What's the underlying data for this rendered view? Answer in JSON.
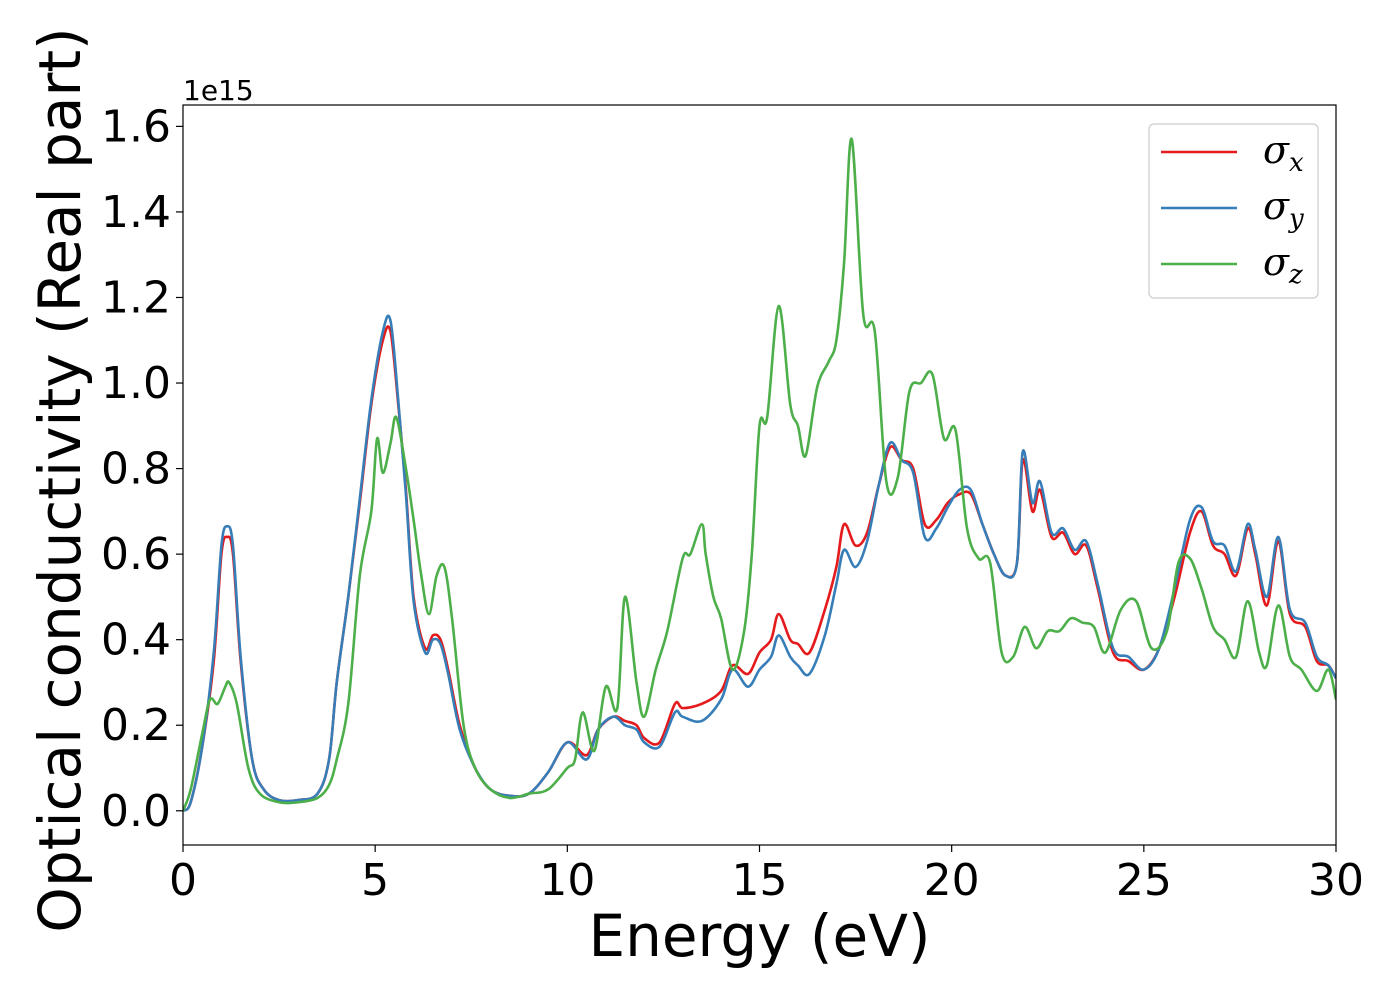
{
  "chart_data": {
    "type": "line",
    "xlabel": "Energy (eV)",
    "ylabel": "Optical conductivity (Real part)",
    "y_offset_label": "1e15",
    "xlim": [
      0,
      30
    ],
    "ylim": [
      -0.08,
      1.65
    ],
    "xticks": [
      0,
      5,
      10,
      15,
      20,
      25,
      30
    ],
    "yticks": [
      0.0,
      0.2,
      0.4,
      0.6,
      0.8,
      1.0,
      1.2,
      1.4,
      1.6
    ],
    "xtick_labels": [
      "0",
      "5",
      "10",
      "15",
      "20",
      "25",
      "30"
    ],
    "ytick_labels": [
      "0.0",
      "0.2",
      "0.4",
      "0.6",
      "0.8",
      "1.0",
      "1.2",
      "1.4",
      "1.6"
    ],
    "grid": false,
    "legend_position": "top-right",
    "legend": [
      {
        "symbol": "σ",
        "sub": "x",
        "color": "#e41a1c"
      },
      {
        "symbol": "σ",
        "sub": "y",
        "color": "#377eb8"
      },
      {
        "symbol": "σ",
        "sub": "z",
        "color": "#4daf4a"
      }
    ],
    "series": [
      {
        "name": "σx",
        "color": "#e41a1c",
        "x": [
          0,
          0.2,
          0.5,
          0.8,
          1.0,
          1.15,
          1.3,
          1.5,
          1.8,
          2.1,
          2.5,
          3.0,
          3.5,
          3.8,
          4.0,
          4.3,
          4.6,
          4.9,
          5.2,
          5.4,
          5.6,
          5.8,
          6.0,
          6.3,
          6.5,
          6.7,
          6.9,
          7.2,
          7.6,
          8.0,
          8.5,
          9.0,
          9.5,
          10.0,
          10.5,
          10.8,
          11.2,
          11.5,
          11.8,
          12.0,
          12.4,
          12.8,
          13.0,
          13.5,
          14.0,
          14.3,
          14.7,
          15.0,
          15.3,
          15.5,
          15.8,
          16.0,
          16.3,
          16.7,
          17.0,
          17.2,
          17.5,
          17.8,
          18.1,
          18.4,
          18.7,
          19.0,
          19.3,
          19.6,
          19.9,
          20.2,
          20.5,
          20.8,
          21.1,
          21.4,
          21.7,
          21.85,
          22.1,
          22.3,
          22.6,
          22.9,
          23.2,
          23.5,
          23.8,
          24.2,
          24.6,
          25.0,
          25.4,
          25.8,
          26.2,
          26.5,
          26.8,
          27.1,
          27.4,
          27.7,
          27.9,
          28.2,
          28.5,
          28.8,
          29.2,
          29.5,
          29.8,
          30.0
        ],
        "values": [
          0.0,
          0.02,
          0.15,
          0.35,
          0.6,
          0.64,
          0.6,
          0.35,
          0.12,
          0.05,
          0.025,
          0.025,
          0.04,
          0.12,
          0.3,
          0.5,
          0.72,
          0.95,
          1.1,
          1.12,
          0.95,
          0.75,
          0.5,
          0.38,
          0.41,
          0.4,
          0.33,
          0.2,
          0.1,
          0.05,
          0.035,
          0.04,
          0.09,
          0.16,
          0.13,
          0.19,
          0.22,
          0.21,
          0.2,
          0.17,
          0.16,
          0.25,
          0.24,
          0.25,
          0.28,
          0.34,
          0.32,
          0.37,
          0.4,
          0.46,
          0.4,
          0.39,
          0.37,
          0.47,
          0.57,
          0.67,
          0.62,
          0.65,
          0.76,
          0.85,
          0.82,
          0.8,
          0.67,
          0.68,
          0.72,
          0.74,
          0.74,
          0.67,
          0.6,
          0.55,
          0.58,
          0.82,
          0.7,
          0.75,
          0.64,
          0.65,
          0.6,
          0.62,
          0.52,
          0.37,
          0.35,
          0.33,
          0.38,
          0.5,
          0.65,
          0.7,
          0.62,
          0.6,
          0.55,
          0.66,
          0.6,
          0.48,
          0.63,
          0.46,
          0.43,
          0.35,
          0.34,
          0.31
        ]
      },
      {
        "name": "σy",
        "color": "#377eb8",
        "x": [
          0,
          0.2,
          0.5,
          0.8,
          1.0,
          1.15,
          1.3,
          1.5,
          1.8,
          2.1,
          2.5,
          3.0,
          3.5,
          3.8,
          4.0,
          4.3,
          4.6,
          4.9,
          5.2,
          5.4,
          5.6,
          5.8,
          6.0,
          6.3,
          6.5,
          6.7,
          6.9,
          7.2,
          7.6,
          8.0,
          8.5,
          9.0,
          9.5,
          10.0,
          10.5,
          10.8,
          11.2,
          11.5,
          11.8,
          12.0,
          12.4,
          12.8,
          13.0,
          13.5,
          14.0,
          14.3,
          14.7,
          15.0,
          15.3,
          15.5,
          15.8,
          16.0,
          16.3,
          16.7,
          17.0,
          17.2,
          17.5,
          17.8,
          18.1,
          18.4,
          18.7,
          19.0,
          19.3,
          19.6,
          19.9,
          20.2,
          20.5,
          20.8,
          21.1,
          21.4,
          21.7,
          21.85,
          22.1,
          22.3,
          22.6,
          22.9,
          23.2,
          23.5,
          23.8,
          24.2,
          24.6,
          25.0,
          25.4,
          25.8,
          26.2,
          26.5,
          26.8,
          27.1,
          27.4,
          27.7,
          27.9,
          28.2,
          28.5,
          28.8,
          29.2,
          29.5,
          29.8,
          30.0
        ],
        "values": [
          0.0,
          0.02,
          0.15,
          0.37,
          0.62,
          0.665,
          0.62,
          0.36,
          0.12,
          0.05,
          0.025,
          0.025,
          0.04,
          0.12,
          0.3,
          0.5,
          0.73,
          0.96,
          1.12,
          1.145,
          0.96,
          0.74,
          0.49,
          0.37,
          0.4,
          0.39,
          0.32,
          0.19,
          0.1,
          0.05,
          0.035,
          0.04,
          0.09,
          0.16,
          0.12,
          0.19,
          0.22,
          0.2,
          0.19,
          0.16,
          0.15,
          0.23,
          0.22,
          0.21,
          0.26,
          0.33,
          0.29,
          0.33,
          0.36,
          0.41,
          0.36,
          0.34,
          0.32,
          0.41,
          0.53,
          0.61,
          0.57,
          0.63,
          0.76,
          0.86,
          0.82,
          0.79,
          0.64,
          0.66,
          0.71,
          0.75,
          0.75,
          0.67,
          0.6,
          0.55,
          0.58,
          0.84,
          0.72,
          0.77,
          0.65,
          0.66,
          0.61,
          0.63,
          0.53,
          0.38,
          0.36,
          0.33,
          0.38,
          0.52,
          0.68,
          0.71,
          0.63,
          0.62,
          0.56,
          0.67,
          0.61,
          0.5,
          0.64,
          0.47,
          0.44,
          0.36,
          0.34,
          0.31
        ]
      },
      {
        "name": "σz",
        "color": "#4daf4a",
        "x": [
          0,
          0.2,
          0.5,
          0.7,
          0.9,
          1.1,
          1.2,
          1.4,
          1.7,
          2.0,
          2.5,
          3.0,
          3.5,
          3.8,
          4.0,
          4.3,
          4.6,
          4.9,
          5.05,
          5.2,
          5.4,
          5.55,
          5.8,
          6.0,
          6.2,
          6.4,
          6.6,
          6.8,
          7.0,
          7.3,
          7.6,
          8.0,
          8.5,
          9.0,
          9.5,
          10.0,
          10.2,
          10.4,
          10.7,
          11.0,
          11.3,
          11.5,
          11.8,
          12.0,
          12.3,
          12.6,
          13.0,
          13.2,
          13.5,
          13.6,
          13.8,
          14.0,
          14.3,
          14.6,
          14.8,
          15.0,
          15.2,
          15.5,
          15.8,
          16.0,
          16.2,
          16.5,
          16.8,
          17.0,
          17.2,
          17.4,
          17.7,
          18.0,
          18.3,
          18.6,
          18.9,
          19.2,
          19.5,
          19.8,
          20.1,
          20.4,
          20.7,
          21.0,
          21.3,
          21.6,
          21.9,
          22.2,
          22.5,
          22.8,
          23.1,
          23.4,
          23.7,
          24.0,
          24.4,
          24.8,
          25.2,
          25.6,
          25.9,
          26.2,
          26.5,
          26.8,
          27.1,
          27.4,
          27.7,
          28.0,
          28.2,
          28.5,
          28.8,
          29.1,
          29.5,
          29.8,
          30.0
        ],
        "values": [
          0.0,
          0.05,
          0.18,
          0.26,
          0.25,
          0.29,
          0.3,
          0.25,
          0.1,
          0.04,
          0.02,
          0.02,
          0.03,
          0.06,
          0.12,
          0.25,
          0.55,
          0.7,
          0.87,
          0.79,
          0.86,
          0.92,
          0.8,
          0.68,
          0.55,
          0.46,
          0.55,
          0.57,
          0.45,
          0.2,
          0.1,
          0.05,
          0.03,
          0.04,
          0.05,
          0.1,
          0.12,
          0.23,
          0.14,
          0.29,
          0.24,
          0.5,
          0.3,
          0.22,
          0.33,
          0.42,
          0.59,
          0.6,
          0.67,
          0.6,
          0.5,
          0.45,
          0.33,
          0.42,
          0.6,
          0.9,
          0.92,
          1.18,
          0.95,
          0.9,
          0.83,
          0.99,
          1.05,
          1.1,
          1.28,
          1.57,
          1.16,
          1.12,
          0.77,
          0.78,
          0.98,
          1.0,
          1.02,
          0.87,
          0.89,
          0.66,
          0.59,
          0.58,
          0.37,
          0.36,
          0.43,
          0.38,
          0.42,
          0.42,
          0.45,
          0.44,
          0.43,
          0.37,
          0.47,
          0.49,
          0.38,
          0.42,
          0.58,
          0.59,
          0.52,
          0.43,
          0.4,
          0.36,
          0.49,
          0.37,
          0.34,
          0.48,
          0.36,
          0.33,
          0.28,
          0.33,
          0.26
        ]
      }
    ]
  }
}
